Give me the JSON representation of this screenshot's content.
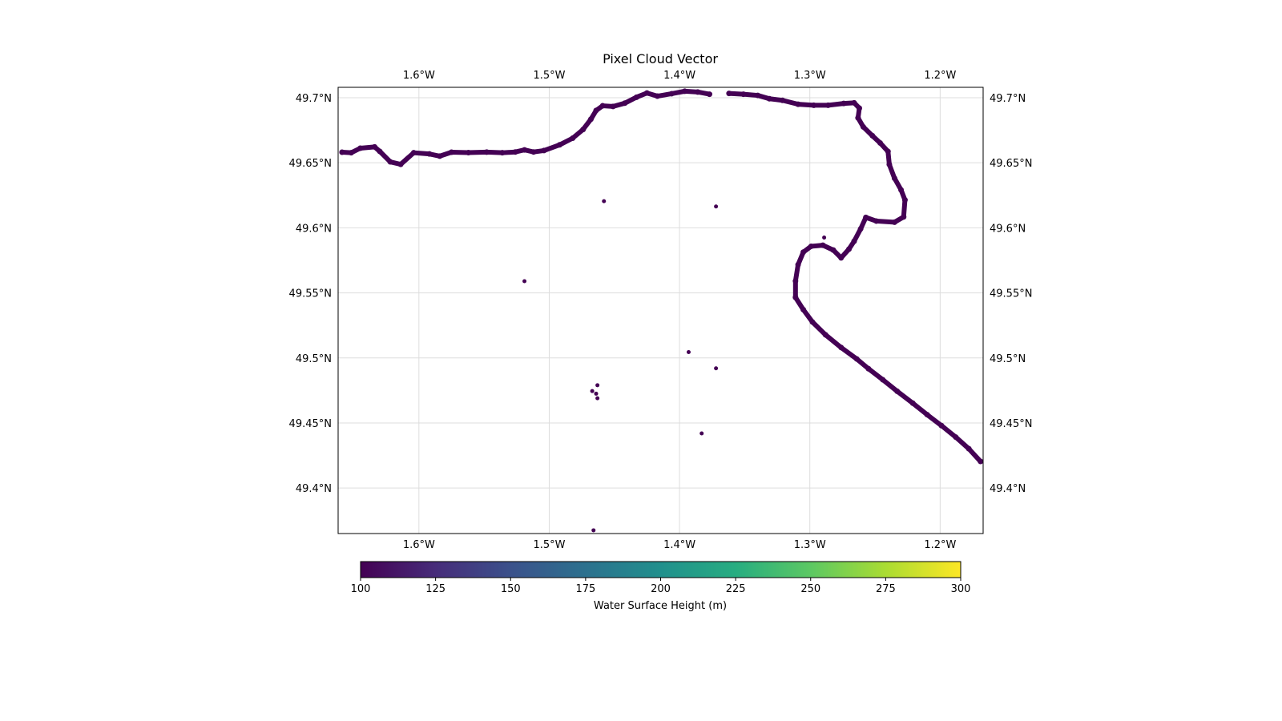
{
  "chart": {
    "title": "Pixel Cloud Vector",
    "x_ticks": [
      "1.6°W",
      "1.5°W",
      "1.4°W",
      "1.3°W",
      "1.2°W"
    ],
    "y_ticks": [
      "49.7°N",
      "49.65°N",
      "49.6°N",
      "49.55°N",
      "49.5°N",
      "49.45°N",
      "49.4°N"
    ]
  },
  "chart_data": {
    "type": "scatter",
    "title": "Pixel Cloud Vector",
    "xlabel": "",
    "ylabel": "",
    "x_unit": "degrees longitude",
    "y_unit": "degrees latitude",
    "xlim": [
      -1.662,
      -1.167
    ],
    "ylim": [
      49.365,
      49.708
    ],
    "x_ticks": [
      -1.6,
      -1.5,
      -1.4,
      -1.3,
      -1.2
    ],
    "y_ticks": [
      49.7,
      49.65,
      49.6,
      49.55,
      49.5,
      49.45,
      49.4
    ],
    "grid": true,
    "color_value_all_points": 100,
    "marker_color": "#440154",
    "coastline": [
      [
        -1.659,
        49.6581
      ],
      [
        -1.652,
        49.6577
      ],
      [
        -1.645,
        49.6612
      ],
      [
        -1.634,
        49.6622
      ],
      [
        -1.63,
        49.6587
      ],
      [
        -1.622,
        49.6507
      ],
      [
        -1.614,
        49.6488
      ],
      [
        -1.604,
        49.6577
      ],
      [
        -1.592,
        49.6568
      ],
      [
        -1.584,
        49.6551
      ],
      [
        -1.575,
        49.6581
      ],
      [
        -1.562,
        49.6578
      ],
      [
        -1.548,
        49.6582
      ],
      [
        -1.536,
        49.6577
      ],
      [
        -1.526,
        49.6583
      ],
      [
        -1.519,
        49.6599
      ],
      [
        -1.512,
        49.6583
      ],
      [
        -1.504,
        49.6594
      ],
      [
        -1.492,
        49.6638
      ],
      [
        -1.482,
        49.6689
      ],
      [
        -1.474,
        49.6756
      ],
      [
        -1.468,
        49.6835
      ],
      [
        -1.464,
        49.6902
      ],
      [
        -1.459,
        49.6938
      ],
      [
        -1.451,
        49.6933
      ],
      [
        -1.442,
        49.6958
      ],
      [
        -1.433,
        49.7004
      ],
      [
        -1.425,
        49.7036
      ],
      [
        -1.417,
        49.7012
      ],
      [
        -1.406,
        49.7031
      ],
      [
        -1.396,
        49.705
      ],
      [
        -1.386,
        49.7044
      ],
      [
        -1.377,
        49.7027
      ]
    ],
    "coastline_segment_2": [
      [
        -1.362,
        49.7033
      ],
      [
        -1.351,
        49.7027
      ],
      [
        -1.34,
        49.7018
      ],
      [
        -1.331,
        49.6992
      ],
      [
        -1.321,
        49.698
      ],
      [
        -1.309,
        49.695
      ],
      [
        -1.297,
        49.6942
      ],
      [
        -1.286,
        49.6942
      ],
      [
        -1.274,
        49.6956
      ],
      [
        -1.266,
        49.6961
      ],
      [
        -1.262,
        49.692
      ],
      [
        -1.263,
        49.6845
      ],
      [
        -1.259,
        49.6776
      ],
      [
        -1.252,
        49.6708
      ],
      [
        -1.246,
        49.6652
      ],
      [
        -1.24,
        49.6587
      ],
      [
        -1.239,
        49.6487
      ],
      [
        -1.235,
        49.6381
      ],
      [
        -1.23,
        49.6292
      ],
      [
        -1.227,
        49.6214
      ],
      [
        -1.228,
        49.6084
      ],
      [
        -1.235,
        49.6043
      ],
      [
        -1.249,
        49.6052
      ],
      [
        -1.257,
        49.608
      ],
      [
        -1.261,
        49.5992
      ],
      [
        -1.266,
        49.5897
      ],
      [
        -1.27,
        49.5836
      ],
      [
        -1.276,
        49.5769
      ],
      [
        -1.282,
        49.5829
      ],
      [
        -1.29,
        49.5866
      ],
      [
        -1.299,
        49.5858
      ],
      [
        -1.305,
        49.5813
      ],
      [
        -1.309,
        49.5717
      ],
      [
        -1.311,
        49.5591
      ],
      [
        -1.311,
        49.5465
      ],
      [
        -1.305,
        49.5371
      ],
      [
        -1.298,
        49.5276
      ],
      [
        -1.288,
        49.5178
      ],
      [
        -1.276,
        49.508
      ],
      [
        -1.264,
        49.4992
      ],
      [
        -1.255,
        49.4917
      ],
      [
        -1.244,
        49.4832
      ],
      [
        -1.233,
        49.4744
      ],
      [
        -1.221,
        49.4652
      ],
      [
        -1.21,
        49.4564
      ],
      [
        -1.199,
        49.448
      ],
      [
        -1.188,
        49.4391
      ],
      [
        -1.178,
        49.4302
      ],
      [
        -1.169,
        49.4204
      ]
    ],
    "isolated_points": [
      [
        -1.458,
        49.6205
      ],
      [
        -1.372,
        49.6164
      ],
      [
        -1.289,
        49.5925
      ],
      [
        -1.519,
        49.559
      ],
      [
        -1.393,
        49.5045
      ],
      [
        -1.372,
        49.492
      ],
      [
        -1.463,
        49.479
      ],
      [
        -1.464,
        49.4725
      ],
      [
        -1.467,
        49.4745
      ],
      [
        -1.463,
        49.469
      ],
      [
        -1.383,
        49.442
      ],
      [
        -1.466,
        49.3675
      ]
    ],
    "colorbar": {
      "label": "Water Surface Height (m)",
      "range": [
        100,
        300
      ],
      "ticks": [
        "100",
        "125",
        "150",
        "175",
        "200",
        "225",
        "250",
        "275",
        "300"
      ],
      "colormap": [
        "#440154",
        "#472c7a",
        "#3b518b",
        "#2c718e",
        "#21908d",
        "#27ad81",
        "#5cc863",
        "#aadc32",
        "#fde725"
      ]
    }
  }
}
